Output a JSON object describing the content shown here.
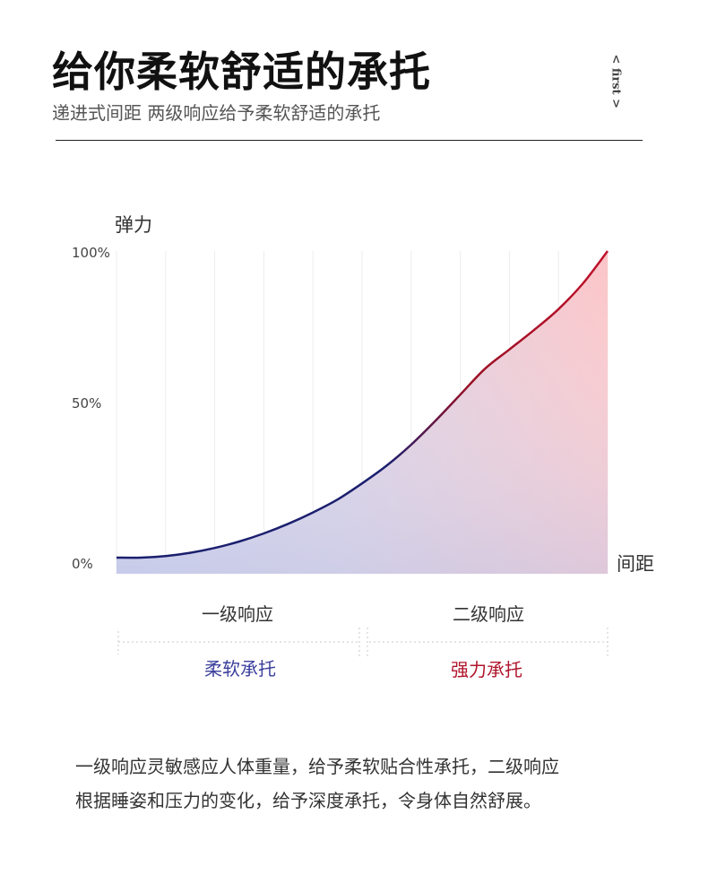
{
  "header": {
    "title": "给你柔软舒适的承托",
    "subtitle": "递进式间距 两级响应给予柔软舒适的承托",
    "tag": "< first >"
  },
  "chart_data": {
    "type": "area",
    "ylabel": "弹力",
    "xlabel": "间距",
    "y_ticks": [
      "0%",
      "50%",
      "100%"
    ],
    "ylim": [
      0,
      100
    ],
    "xlim": [
      0,
      100
    ],
    "grid": "vertical",
    "x": [
      0,
      5,
      10,
      15,
      20,
      25,
      30,
      35,
      40,
      45,
      50,
      55,
      60,
      65,
      70,
      75,
      80,
      85,
      90,
      95,
      100
    ],
    "values": [
      5,
      5,
      5.5,
      6.5,
      8,
      10,
      12.5,
      15.5,
      19,
      23,
      28,
      33.5,
      40,
      47.5,
      55.5,
      63.5,
      69.5,
      75.5,
      82,
      90,
      100
    ],
    "stages": [
      {
        "label": "一级响应",
        "support": "柔软承托",
        "x_range": [
          0,
          50
        ],
        "color": "#3b3f9c"
      },
      {
        "label": "二级响应",
        "support": "强力承托",
        "x_range": [
          50,
          100
        ],
        "color": "#b0142b"
      }
    ]
  },
  "description": {
    "line1": "一级响应灵敏感应人体重量，给予柔软贴合性承托，二级响应",
    "line2": "根据睡姿和压力的变化，给予深度承托，令身体自然舒展。"
  }
}
